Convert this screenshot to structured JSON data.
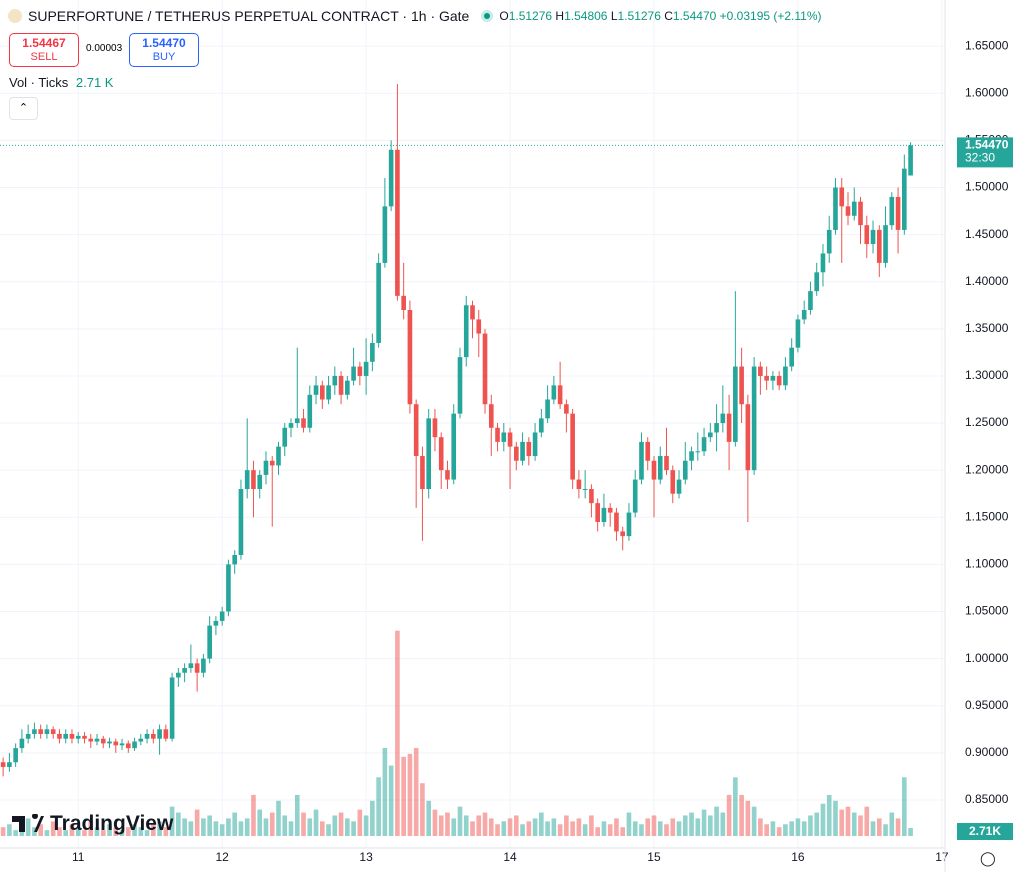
{
  "chart_data": {
    "type": "candlestick",
    "title": "SUPERFORTUNE / TETHERUS PERPETUAL CONTRACT · 1h · Gate",
    "ohlc_header": {
      "o_label": "O",
      "o": "1.51276",
      "h_label": "H",
      "h": "1.54806",
      "l_label": "L",
      "l": "1.51276",
      "c_label": "C",
      "c": "1.54470",
      "change": "+0.03195 (+2.11%)"
    },
    "trade": {
      "sell_price": "1.54467",
      "sell_label": "SELL",
      "spread": "0.00003",
      "buy_price": "1.54470",
      "buy_label": "BUY"
    },
    "volume_header": {
      "label": "Vol · Ticks",
      "value": "2.71 K"
    },
    "price_tag": {
      "price": "1.54470",
      "countdown": "32:30"
    },
    "volume_tag": "2.71K",
    "logo": "TradingView",
    "up_color": "#26a69a",
    "down_color": "#ef5350",
    "xlim": [
      -0.5,
      150.5
    ],
    "xticks": [
      {
        "value": 12,
        "label": "11"
      },
      {
        "value": 35,
        "label": "12"
      },
      {
        "value": 58,
        "label": "13"
      },
      {
        "value": 81,
        "label": "14"
      },
      {
        "value": 104,
        "label": "15"
      },
      {
        "value": 127,
        "label": "16"
      },
      {
        "value": 150,
        "label": "17"
      }
    ],
    "ylim": [
      0.799,
      1.699
    ],
    "yticks": [
      {
        "value": 0.85,
        "label": "0.85000"
      },
      {
        "value": 0.9,
        "label": "0.90000"
      },
      {
        "value": 0.95,
        "label": "0.95000"
      },
      {
        "value": 1.0,
        "label": "1.00000"
      },
      {
        "value": 1.05,
        "label": "1.05000"
      },
      {
        "value": 1.1,
        "label": "1.10000"
      },
      {
        "value": 1.15,
        "label": "1.15000"
      },
      {
        "value": 1.2,
        "label": "1.20000"
      },
      {
        "value": 1.25,
        "label": "1.25000"
      },
      {
        "value": 1.3,
        "label": "1.30000"
      },
      {
        "value": 1.35,
        "label": "1.35000"
      },
      {
        "value": 1.4,
        "label": "1.40000"
      },
      {
        "value": 1.45,
        "label": "1.45000"
      },
      {
        "value": 1.5,
        "label": "1.50000"
      },
      {
        "value": 1.55,
        "label": "1.55000"
      },
      {
        "value": 1.6,
        "label": "1.60000"
      },
      {
        "value": 1.65,
        "label": "1.65000"
      }
    ],
    "y2lim": [
      0,
      285
    ],
    "grid": true,
    "candles": [
      [
        0.89,
        0.895,
        0.875,
        0.885
      ],
      [
        0.885,
        0.9,
        0.88,
        0.89
      ],
      [
        0.89,
        0.91,
        0.885,
        0.905
      ],
      [
        0.905,
        0.925,
        0.9,
        0.915
      ],
      [
        0.915,
        0.93,
        0.91,
        0.92
      ],
      [
        0.92,
        0.932,
        0.915,
        0.925
      ],
      [
        0.925,
        0.93,
        0.915,
        0.92
      ],
      [
        0.92,
        0.93,
        0.915,
        0.925
      ],
      [
        0.925,
        0.928,
        0.915,
        0.92
      ],
      [
        0.92,
        0.925,
        0.91,
        0.915
      ],
      [
        0.915,
        0.925,
        0.91,
        0.92
      ],
      [
        0.92,
        0.925,
        0.91,
        0.915
      ],
      [
        0.915,
        0.922,
        0.91,
        0.918
      ],
      [
        0.918,
        0.922,
        0.91,
        0.915
      ],
      [
        0.915,
        0.92,
        0.905,
        0.912
      ],
      [
        0.912,
        0.92,
        0.908,
        0.915
      ],
      [
        0.915,
        0.918,
        0.905,
        0.91
      ],
      [
        0.91,
        0.916,
        0.905,
        0.912
      ],
      [
        0.912,
        0.915,
        0.9,
        0.908
      ],
      [
        0.908,
        0.915,
        0.903,
        0.91
      ],
      [
        0.91,
        0.913,
        0.9,
        0.905
      ],
      [
        0.905,
        0.916,
        0.902,
        0.912
      ],
      [
        0.912,
        0.92,
        0.908,
        0.915
      ],
      [
        0.915,
        0.925,
        0.91,
        0.92
      ],
      [
        0.92,
        0.925,
        0.91,
        0.915
      ],
      [
        0.915,
        0.93,
        0.898,
        0.925
      ],
      [
        0.925,
        0.93,
        0.912,
        0.915
      ],
      [
        0.915,
        0.985,
        0.912,
        0.98
      ],
      [
        0.98,
        0.99,
        0.97,
        0.985
      ],
      [
        0.985,
        0.995,
        0.975,
        0.99
      ],
      [
        0.99,
        1.015,
        0.985,
        0.995
      ],
      [
        0.995,
        1.0,
        0.965,
        0.985
      ],
      [
        0.985,
        1.005,
        0.98,
        1.0
      ],
      [
        1.0,
        1.045,
        0.995,
        1.035
      ],
      [
        1.035,
        1.045,
        1.025,
        1.04
      ],
      [
        1.04,
        1.055,
        1.035,
        1.05
      ],
      [
        1.05,
        1.105,
        1.045,
        1.1
      ],
      [
        1.1,
        1.115,
        1.09,
        1.11
      ],
      [
        1.11,
        1.19,
        1.105,
        1.18
      ],
      [
        1.18,
        1.255,
        1.17,
        1.2
      ],
      [
        1.2,
        1.21,
        1.15,
        1.18
      ],
      [
        1.18,
        1.2,
        1.17,
        1.195
      ],
      [
        1.195,
        1.22,
        1.185,
        1.21
      ],
      [
        1.21,
        1.215,
        1.14,
        1.205
      ],
      [
        1.205,
        1.23,
        1.195,
        1.225
      ],
      [
        1.225,
        1.25,
        1.215,
        1.245
      ],
      [
        1.245,
        1.255,
        1.235,
        1.25
      ],
      [
        1.25,
        1.33,
        1.245,
        1.255
      ],
      [
        1.255,
        1.265,
        1.24,
        1.245
      ],
      [
        1.245,
        1.29,
        1.24,
        1.28
      ],
      [
        1.28,
        1.3,
        1.27,
        1.29
      ],
      [
        1.29,
        1.295,
        1.265,
        1.275
      ],
      [
        1.275,
        1.3,
        1.27,
        1.29
      ],
      [
        1.29,
        1.31,
        1.28,
        1.3
      ],
      [
        1.3,
        1.305,
        1.27,
        1.28
      ],
      [
        1.28,
        1.3,
        1.275,
        1.295
      ],
      [
        1.295,
        1.33,
        1.29,
        1.31
      ],
      [
        1.31,
        1.315,
        1.29,
        1.3
      ],
      [
        1.3,
        1.34,
        1.28,
        1.315
      ],
      [
        1.315,
        1.345,
        1.305,
        1.335
      ],
      [
        1.335,
        1.43,
        1.33,
        1.42
      ],
      [
        1.42,
        1.51,
        1.415,
        1.48
      ],
      [
        1.48,
        1.55,
        1.475,
        1.54
      ],
      [
        1.54,
        1.61,
        1.38,
        1.385
      ],
      [
        1.385,
        1.42,
        1.36,
        1.37
      ],
      [
        1.37,
        1.38,
        1.26,
        1.27
      ],
      [
        1.27,
        1.275,
        1.16,
        1.215
      ],
      [
        1.215,
        1.225,
        1.125,
        1.18
      ],
      [
        1.18,
        1.265,
        1.17,
        1.255
      ],
      [
        1.255,
        1.265,
        1.22,
        1.235
      ],
      [
        1.235,
        1.24,
        1.18,
        1.2
      ],
      [
        1.2,
        1.21,
        1.18,
        1.19
      ],
      [
        1.19,
        1.27,
        1.185,
        1.26
      ],
      [
        1.26,
        1.33,
        1.255,
        1.32
      ],
      [
        1.32,
        1.385,
        1.31,
        1.375
      ],
      [
        1.375,
        1.38,
        1.34,
        1.36
      ],
      [
        1.36,
        1.37,
        1.32,
        1.345
      ],
      [
        1.345,
        1.35,
        1.26,
        1.27
      ],
      [
        1.27,
        1.28,
        1.215,
        1.245
      ],
      [
        1.245,
        1.25,
        1.22,
        1.23
      ],
      [
        1.23,
        1.25,
        1.22,
        1.24
      ],
      [
        1.24,
        1.245,
        1.18,
        1.225
      ],
      [
        1.225,
        1.23,
        1.2,
        1.21
      ],
      [
        1.21,
        1.24,
        1.205,
        1.23
      ],
      [
        1.23,
        1.235,
        1.205,
        1.215
      ],
      [
        1.215,
        1.25,
        1.21,
        1.24
      ],
      [
        1.24,
        1.265,
        1.235,
        1.255
      ],
      [
        1.255,
        1.29,
        1.25,
        1.275
      ],
      [
        1.275,
        1.3,
        1.27,
        1.29
      ],
      [
        1.29,
        1.315,
        1.265,
        1.27
      ],
      [
        1.27,
        1.275,
        1.24,
        1.26
      ],
      [
        1.26,
        1.265,
        1.18,
        1.19
      ],
      [
        1.19,
        1.2,
        1.17,
        1.18
      ],
      [
        1.18,
        1.2,
        1.17,
        1.18
      ],
      [
        1.18,
        1.185,
        1.15,
        1.165
      ],
      [
        1.165,
        1.17,
        1.135,
        1.145
      ],
      [
        1.145,
        1.175,
        1.14,
        1.16
      ],
      [
        1.16,
        1.165,
        1.14,
        1.155
      ],
      [
        1.155,
        1.16,
        1.125,
        1.135
      ],
      [
        1.135,
        1.14,
        1.115,
        1.13
      ],
      [
        1.13,
        1.165,
        1.125,
        1.155
      ],
      [
        1.155,
        1.2,
        1.15,
        1.19
      ],
      [
        1.19,
        1.24,
        1.185,
        1.23
      ],
      [
        1.23,
        1.235,
        1.2,
        1.21
      ],
      [
        1.21,
        1.215,
        1.15,
        1.19
      ],
      [
        1.19,
        1.225,
        1.185,
        1.215
      ],
      [
        1.215,
        1.245,
        1.195,
        1.2
      ],
      [
        1.2,
        1.205,
        1.165,
        1.175
      ],
      [
        1.175,
        1.2,
        1.17,
        1.19
      ],
      [
        1.19,
        1.23,
        1.185,
        1.21
      ],
      [
        1.21,
        1.225,
        1.2,
        1.22
      ],
      [
        1.22,
        1.24,
        1.21,
        1.22
      ],
      [
        1.22,
        1.245,
        1.215,
        1.235
      ],
      [
        1.235,
        1.25,
        1.23,
        1.24
      ],
      [
        1.24,
        1.27,
        1.22,
        1.25
      ],
      [
        1.25,
        1.29,
        1.24,
        1.26
      ],
      [
        1.26,
        1.28,
        1.2,
        1.23
      ],
      [
        1.23,
        1.39,
        1.225,
        1.31
      ],
      [
        1.31,
        1.33,
        1.25,
        1.27
      ],
      [
        1.27,
        1.28,
        1.145,
        1.2
      ],
      [
        1.2,
        1.32,
        1.195,
        1.31
      ],
      [
        1.31,
        1.315,
        1.28,
        1.3
      ],
      [
        1.3,
        1.31,
        1.285,
        1.295
      ],
      [
        1.295,
        1.305,
        1.285,
        1.3
      ],
      [
        1.3,
        1.305,
        1.285,
        1.29
      ],
      [
        1.29,
        1.32,
        1.285,
        1.31
      ],
      [
        1.31,
        1.34,
        1.305,
        1.33
      ],
      [
        1.33,
        1.365,
        1.325,
        1.36
      ],
      [
        1.36,
        1.38,
        1.355,
        1.37
      ],
      [
        1.37,
        1.4,
        1.365,
        1.39
      ],
      [
        1.39,
        1.42,
        1.385,
        1.41
      ],
      [
        1.41,
        1.44,
        1.395,
        1.43
      ],
      [
        1.43,
        1.47,
        1.42,
        1.455
      ],
      [
        1.455,
        1.51,
        1.45,
        1.5
      ],
      [
        1.5,
        1.51,
        1.42,
        1.48
      ],
      [
        1.48,
        1.495,
        1.46,
        1.47
      ],
      [
        1.47,
        1.5,
        1.465,
        1.485
      ],
      [
        1.485,
        1.49,
        1.44,
        1.46
      ],
      [
        1.46,
        1.47,
        1.425,
        1.44
      ],
      [
        1.44,
        1.465,
        1.43,
        1.455
      ],
      [
        1.455,
        1.46,
        1.405,
        1.42
      ],
      [
        1.42,
        1.48,
        1.415,
        1.46
      ],
      [
        1.46,
        1.495,
        1.455,
        1.49
      ],
      [
        1.49,
        1.5,
        1.43,
        1.455
      ],
      [
        1.455,
        1.535,
        1.45,
        1.52
      ],
      [
        1.51276,
        1.54806,
        1.51276,
        1.5447
      ]
    ],
    "volume": [
      3,
      4,
      2,
      5,
      6,
      3,
      4,
      2,
      5,
      3,
      2,
      4,
      3,
      2,
      5,
      3,
      2,
      4,
      3,
      2,
      3,
      4,
      3,
      2,
      4,
      5,
      3,
      10,
      8,
      6,
      5,
      9,
      6,
      7,
      5,
      4,
      6,
      8,
      5,
      6,
      14,
      9,
      6,
      8,
      12,
      7,
      5,
      14,
      8,
      6,
      9,
      5,
      4,
      7,
      8,
      6,
      5,
      9,
      7,
      12,
      20,
      30,
      24,
      70,
      27,
      28,
      30,
      18,
      12,
      9,
      7,
      8,
      6,
      10,
      7,
      5,
      7,
      8,
      6,
      4,
      5,
      6,
      7,
      4,
      5,
      6,
      8,
      5,
      6,
      4,
      7,
      5,
      6,
      4,
      7,
      3,
      5,
      4,
      6,
      3,
      8,
      5,
      4,
      6,
      7,
      5,
      4,
      6,
      5,
      7,
      8,
      6,
      9,
      7,
      10,
      8,
      14,
      20,
      14,
      12,
      10,
      6,
      4,
      5,
      3,
      4,
      5,
      6,
      5,
      7,
      8,
      11,
      14,
      12,
      9,
      10,
      8,
      7,
      10,
      5,
      6,
      4,
      8,
      6,
      20,
      2.71
    ]
  }
}
